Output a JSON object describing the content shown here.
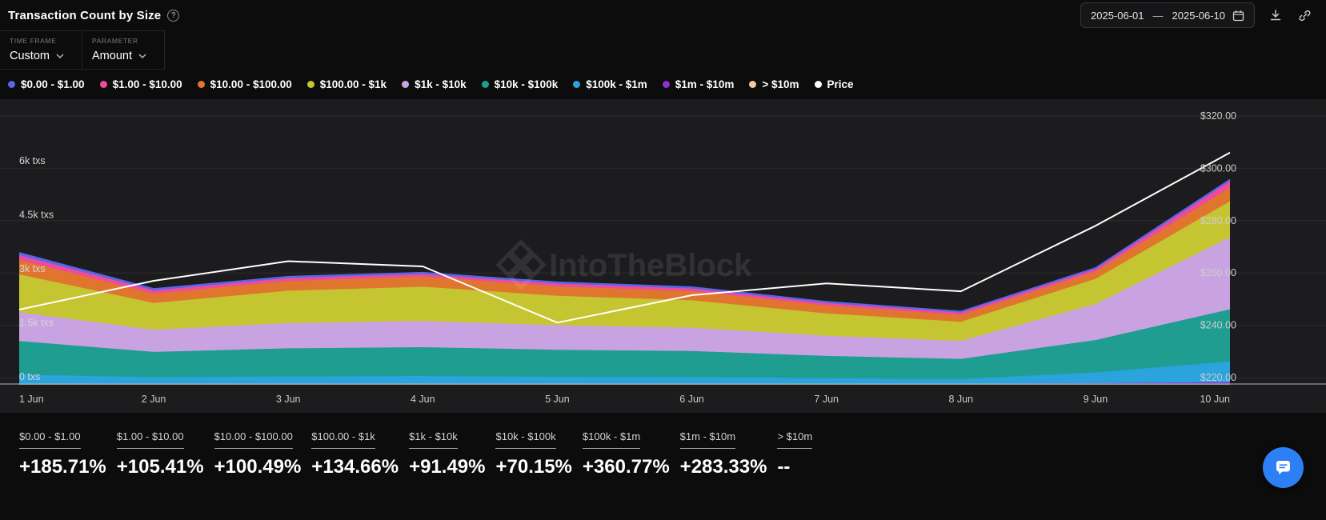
{
  "header": {
    "title": "Transaction Count by Size",
    "date_start": "2025-06-01",
    "date_separator": "—",
    "date_end": "2025-06-10"
  },
  "controls": {
    "time_frame_label": "TIME FRAME",
    "time_frame_value": "Custom",
    "parameter_label": "PARAMETER",
    "parameter_value": "Amount"
  },
  "legend": [
    {
      "label": "$0.00 - $1.00",
      "color": "#5767e8"
    },
    {
      "label": "$1.00 - $10.00",
      "color": "#ed4c9a"
    },
    {
      "label": "$10.00 - $100.00",
      "color": "#e0762e"
    },
    {
      "label": "$100.00 - $1k",
      "color": "#c5c531"
    },
    {
      "label": "$1k - $10k",
      "color": "#c9a2e2"
    },
    {
      "label": "$10k - $100k",
      "color": "#1e9d90"
    },
    {
      "label": "$100k - $1m",
      "color": "#2ba3dd"
    },
    {
      "label": "$1m - $10m",
      "color": "#8c2fd6"
    },
    {
      "label": "> $10m",
      "color": "#eec9a0"
    },
    {
      "label": "Price",
      "color": "#ffffff"
    }
  ],
  "watermark": "IntoTheBlock",
  "chart_data": {
    "type": "area",
    "stacked": true,
    "title": "Transaction Count by Size",
    "x": [
      "1 Jun",
      "2 Jun",
      "3 Jun",
      "4 Jun",
      "5 Jun",
      "6 Jun",
      "7 Jun",
      "8 Jun",
      "9 Jun",
      "10 Jun"
    ],
    "left_axis": {
      "unit": "txs",
      "max": 6000,
      "ticks": [
        {
          "value": 0,
          "label": "0 txs"
        },
        {
          "value": 1500,
          "label": "1.5k txs"
        },
        {
          "value": 3000,
          "label": "3k txs"
        },
        {
          "value": 4500,
          "label": "4.5k txs"
        },
        {
          "value": 6000,
          "label": "6k txs"
        }
      ]
    },
    "right_axis": {
      "unit": "USD",
      "min": 220,
      "max": 320,
      "ticks": [
        {
          "value": 220,
          "label": "$220.00"
        },
        {
          "value": 240,
          "label": "$240.00"
        },
        {
          "value": 260,
          "label": "$260.00"
        },
        {
          "value": 280,
          "label": "$280.00"
        },
        {
          "value": 300,
          "label": "$300.00"
        },
        {
          "value": 320,
          "label": "$320.00"
        }
      ]
    },
    "series": [
      {
        "name": "> $10m",
        "color": "#eec9a0",
        "values": [
          0,
          0,
          0,
          0,
          0,
          0,
          0,
          0,
          0,
          0
        ]
      },
      {
        "name": "$1m - $10m",
        "color": "#8c2fd6",
        "values": [
          12,
          10,
          11,
          12,
          11,
          10,
          9,
          8,
          20,
          46
        ]
      },
      {
        "name": "$100k - $1m",
        "color": "#2ba3dd",
        "values": [
          245,
          180,
          200,
          210,
          190,
          185,
          150,
          130,
          300,
          580
        ]
      },
      {
        "name": "$10k - $100k",
        "color": "#1e9d90",
        "values": [
          937,
          700,
          780,
          800,
          750,
          720,
          620,
          560,
          900,
          1450
        ]
      },
      {
        "name": "$1k - $10k",
        "color": "#c9a2e2",
        "values": [
          800,
          620,
          700,
          730,
          680,
          650,
          560,
          500,
          1000,
          2000
        ]
      },
      {
        "name": "$100.00 - $1k",
        "color": "#c5c531",
        "values": [
          1050,
          740,
          900,
          950,
          820,
          760,
          620,
          530,
          700,
          1000
        ]
      },
      {
        "name": "$10.00 - $100.00",
        "color": "#e0762e",
        "values": [
          400,
          260,
          270,
          280,
          260,
          250,
          220,
          190,
          200,
          380
        ]
      },
      {
        "name": "$1.00 - $10.00",
        "color": "#ed4c9a",
        "values": [
          135,
          90,
          83,
          73,
          77,
          79,
          73,
          67,
          69,
          180
        ]
      },
      {
        "name": "$0.00 - $1.00",
        "color": "#5767e8",
        "values": [
          67,
          45,
          40,
          40,
          40,
          40,
          35,
          30,
          35,
          45
        ]
      }
    ],
    "price": {
      "name": "Price",
      "color": "#ffffff",
      "values": [
        246,
        257,
        264.5,
        262.5,
        241,
        251.5,
        256,
        253,
        278,
        306
      ]
    },
    "legend_position": "top",
    "grid": true
  },
  "stats": [
    {
      "label": "$0.00 - $1.00",
      "change": "+185.71%"
    },
    {
      "label": "$1.00 - $10.00",
      "change": "+105.41%"
    },
    {
      "label": "$10.00 - $100.00",
      "change": "+100.49%"
    },
    {
      "label": "$100.00 - $1k",
      "change": "+134.66%"
    },
    {
      "label": "$1k - $10k",
      "change": "+91.49%"
    },
    {
      "label": "$10k - $100k",
      "change": "+70.15%"
    },
    {
      "label": "$100k - $1m",
      "change": "+360.77%"
    },
    {
      "label": "$1m - $10m",
      "change": "+283.33%"
    },
    {
      "label": "> $10m",
      "change": "--"
    }
  ]
}
